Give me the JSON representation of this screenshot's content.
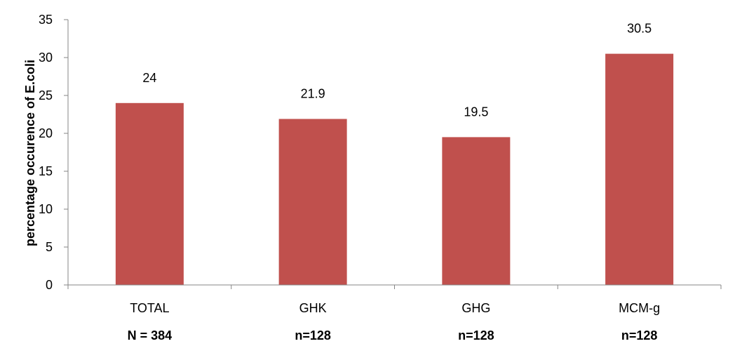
{
  "chart_data": {
    "type": "bar",
    "categories": [
      "TOTAL",
      "GHK",
      "GHG",
      "MCM-g"
    ],
    "sample_sizes": [
      "N = 384",
      "n=128",
      "n=128",
      "n=128"
    ],
    "values": [
      24,
      21.9,
      19.5,
      30.5
    ],
    "data_labels": [
      "24",
      "21.9",
      "19.5",
      "30.5"
    ],
    "ylabel": "percentage occurence of E.coli",
    "xlabel": "",
    "ylim": [
      0,
      35
    ],
    "yticks": [
      0,
      5,
      10,
      15,
      20,
      25,
      30,
      35
    ],
    "grid": false,
    "legend": "none",
    "bar_color": "#c0504d"
  }
}
